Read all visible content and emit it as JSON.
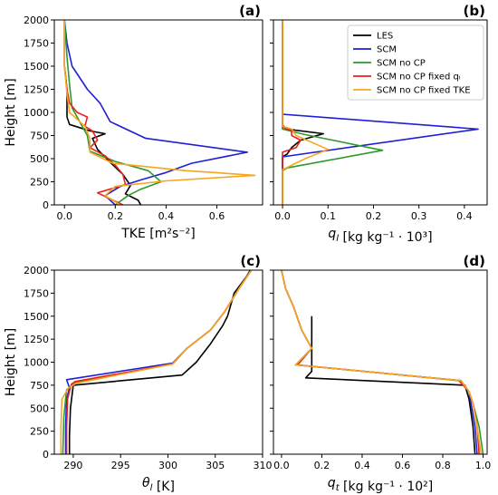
{
  "chart_data": [
    {
      "id": "a",
      "type": "line",
      "panel_label": "(a)",
      "xlabel": "TKE [m²s⁻²]",
      "ylabel": "Height [m]",
      "xlim": [
        -0.04,
        0.78
      ],
      "ylim": [
        0,
        2000
      ],
      "xticks": [
        0.0,
        0.2,
        0.4,
        0.6
      ],
      "xticklabels": [
        "0.0",
        "0.2",
        "0.4",
        "0.6"
      ],
      "yticks": [
        0,
        250,
        500,
        750,
        1000,
        1250,
        1500,
        1750,
        2000
      ],
      "yticklabels": [
        "0",
        "250",
        "500",
        "750",
        "1000",
        "1250",
        "1500",
        "1750",
        "2000"
      ],
      "legend": null,
      "series": [
        {
          "name": "LES",
          "color": "#000000",
          "points": [
            [
              0.0,
              2000
            ],
            [
              0.0,
              1500
            ],
            [
              0.01,
              1250
            ],
            [
              0.01,
              1100
            ],
            [
              0.01,
              950
            ],
            [
              0.02,
              870
            ],
            [
              0.1,
              800
            ],
            [
              0.16,
              770
            ],
            [
              0.11,
              720
            ],
            [
              0.13,
              600
            ],
            [
              0.18,
              460
            ],
            [
              0.23,
              330
            ],
            [
              0.26,
              210
            ],
            [
              0.24,
              120
            ],
            [
              0.29,
              50
            ],
            [
              0.3,
              0
            ]
          ]
        },
        {
          "name": "SCM",
          "color": "#1f1fd6",
          "points": [
            [
              0.0,
              2000
            ],
            [
              0.01,
              1750
            ],
            [
              0.03,
              1500
            ],
            [
              0.09,
              1250
            ],
            [
              0.14,
              1100
            ],
            [
              0.18,
              900
            ],
            [
              0.32,
              720
            ],
            [
              0.72,
              570
            ],
            [
              0.5,
              450
            ],
            [
              0.4,
              350
            ],
            [
              0.3,
              270
            ],
            [
              0.22,
              200
            ],
            [
              0.16,
              100
            ],
            [
              0.2,
              0
            ]
          ]
        },
        {
          "name": "SCM no CP",
          "color": "#2c9a2c",
          "points": [
            [
              0.0,
              2000
            ],
            [
              0.01,
              1600
            ],
            [
              0.02,
              1300
            ],
            [
              0.03,
              1050
            ],
            [
              0.06,
              900
            ],
            [
              0.09,
              750
            ],
            [
              0.1,
              580
            ],
            [
              0.2,
              470
            ],
            [
              0.33,
              370
            ],
            [
              0.38,
              250
            ],
            [
              0.3,
              170
            ],
            [
              0.25,
              100
            ],
            [
              0.2,
              0
            ]
          ]
        },
        {
          "name": "SCM no CP fixed q_l",
          "color": "#e8231a",
          "points": [
            [
              0.0,
              2000
            ],
            [
              0.0,
              1500
            ],
            [
              0.01,
              1250
            ],
            [
              0.02,
              1100
            ],
            [
              0.05,
              1000
            ],
            [
              0.09,
              950
            ],
            [
              0.08,
              850
            ],
            [
              0.11,
              800
            ],
            [
              0.13,
              700
            ],
            [
              0.1,
              620
            ],
            [
              0.16,
              530
            ],
            [
              0.2,
              430
            ],
            [
              0.23,
              330
            ],
            [
              0.24,
              220
            ],
            [
              0.13,
              130
            ],
            [
              0.23,
              0
            ]
          ]
        },
        {
          "name": "SCM no CP fixed TKE",
          "color": "#f5a623",
          "points": [
            [
              0.0,
              2000
            ],
            [
              0.0,
              1500
            ],
            [
              0.01,
              1200
            ],
            [
              0.02,
              1000
            ],
            [
              0.08,
              850
            ],
            [
              0.1,
              720
            ],
            [
              0.1,
              570
            ],
            [
              0.19,
              450
            ],
            [
              0.48,
              370
            ],
            [
              0.75,
              320
            ],
            [
              0.4,
              260
            ],
            [
              0.2,
              200
            ],
            [
              0.16,
              100
            ],
            [
              0.22,
              0
            ]
          ]
        }
      ]
    },
    {
      "id": "b",
      "type": "line",
      "panel_label": "(b)",
      "xlabel": "q_l [kg kg⁻¹ · 10³]",
      "xlim": [
        -0.02,
        0.45
      ],
      "ylim": [
        0,
        2000
      ],
      "xticks": [
        0.0,
        0.1,
        0.2,
        0.3,
        0.4
      ],
      "xticklabels": [
        "0.0",
        "0.1",
        "0.2",
        "0.3",
        "0.4"
      ],
      "legend": "top-right",
      "series": [
        {
          "name": "LES",
          "color": "#000000",
          "points": [
            [
              0.0,
              2000
            ],
            [
              0.0,
              860
            ],
            [
              0.01,
              820
            ],
            [
              0.09,
              770
            ],
            [
              0.04,
              700
            ],
            [
              0.02,
              620
            ],
            [
              0.01,
              550
            ],
            [
              0.0,
              520
            ],
            [
              0.0,
              0
            ]
          ]
        },
        {
          "name": "SCM",
          "color": "#1f1fd6",
          "points": [
            [
              0.0,
              2000
            ],
            [
              0.0,
              980
            ],
            [
              0.43,
              820
            ],
            [
              0.0,
              520
            ],
            [
              0.0,
              0
            ]
          ]
        },
        {
          "name": "SCM no CP",
          "color": "#2c9a2c",
          "points": [
            [
              0.0,
              2000
            ],
            [
              0.0,
              820
            ],
            [
              0.05,
              760
            ],
            [
              0.22,
              590
            ],
            [
              0.01,
              400
            ],
            [
              0.0,
              370
            ],
            [
              0.0,
              0
            ]
          ]
        },
        {
          "name": "SCM no CP fixed q_l",
          "color": "#e8231a",
          "points": [
            [
              0.0,
              2000
            ],
            [
              0.0,
              840
            ],
            [
              0.02,
              800
            ],
            [
              0.02,
              750
            ],
            [
              0.04,
              700
            ],
            [
              0.03,
              620
            ],
            [
              0.0,
              570
            ],
            [
              0.0,
              0
            ]
          ]
        },
        {
          "name": "SCM no CP fixed TKE",
          "color": "#f5a623",
          "points": [
            [
              0.0,
              2000
            ],
            [
              0.0,
              850
            ],
            [
              0.02,
              820
            ],
            [
              0.03,
              750
            ],
            [
              0.1,
              600
            ],
            [
              0.05,
              500
            ],
            [
              0.0,
              380
            ],
            [
              0.0,
              0
            ]
          ]
        }
      ]
    },
    {
      "id": "c",
      "type": "line",
      "panel_label": "(c)",
      "xlabel": "θ_l [K]",
      "ylabel": "Height [m]",
      "xlim": [
        288,
        310
      ],
      "ylim": [
        0,
        2000
      ],
      "xticks": [
        290,
        295,
        300,
        305,
        310
      ],
      "xticklabels": [
        "290",
        "295",
        "300",
        "305",
        "310"
      ],
      "yticks": [
        0,
        250,
        500,
        750,
        1000,
        1250,
        1500,
        1750,
        2000
      ],
      "yticklabels": [
        "0",
        "250",
        "500",
        "750",
        "1000",
        "1250",
        "1500",
        "1750",
        "2000"
      ],
      "legend": null,
      "series": [
        {
          "name": "LES",
          "color": "#000000",
          "points": [
            [
              289.6,
              0
            ],
            [
              289.6,
              200
            ],
            [
              289.7,
              500
            ],
            [
              290.0,
              750
            ],
            [
              301.5,
              860
            ],
            [
              303.0,
              1000
            ],
            [
              304.5,
              1200
            ],
            [
              305.8,
              1400
            ],
            [
              306.3,
              1500
            ],
            [
              307.0,
              1750
            ],
            [
              308.3,
              1930
            ],
            [
              308.7,
              2000
            ]
          ]
        },
        {
          "name": "SCM",
          "color": "#1f1fd6",
          "points": [
            [
              289.2,
              0
            ],
            [
              289.2,
              300
            ],
            [
              289.3,
              600
            ],
            [
              289.6,
              720
            ],
            [
              289.3,
              810
            ],
            [
              300.5,
              990
            ],
            [
              302.0,
              1150
            ],
            [
              304.5,
              1350
            ],
            [
              306.0,
              1550
            ],
            [
              307.5,
              1800
            ],
            [
              308.8,
              2000
            ]
          ]
        },
        {
          "name": "SCM no CP",
          "color": "#2c9a2c",
          "points": [
            [
              288.9,
              0
            ],
            [
              289.0,
              400
            ],
            [
              289.2,
              600
            ],
            [
              289.3,
              700
            ],
            [
              290.2,
              780
            ],
            [
              300.5,
              980
            ],
            [
              302.0,
              1150
            ],
            [
              304.5,
              1350
            ],
            [
              306.0,
              1550
            ],
            [
              307.5,
              1800
            ],
            [
              308.8,
              2000
            ]
          ]
        },
        {
          "name": "SCM no CP fixed q_l",
          "color": "#e8231a",
          "points": [
            [
              289.3,
              0
            ],
            [
              289.3,
              300
            ],
            [
              289.4,
              600
            ],
            [
              289.8,
              760
            ],
            [
              290.2,
              790
            ],
            [
              300.5,
              980
            ],
            [
              302.0,
              1150
            ],
            [
              304.5,
              1350
            ],
            [
              306.0,
              1550
            ],
            [
              307.5,
              1800
            ],
            [
              308.8,
              2000
            ]
          ]
        },
        {
          "name": "SCM no CP fixed TKE",
          "color": "#f5a623",
          "points": [
            [
              288.7,
              0
            ],
            [
              288.7,
              300
            ],
            [
              288.8,
              600
            ],
            [
              289.5,
              720
            ],
            [
              290.3,
              770
            ],
            [
              300.5,
              980
            ],
            [
              302.0,
              1150
            ],
            [
              304.5,
              1350
            ],
            [
              306.0,
              1550
            ],
            [
              307.5,
              1800
            ],
            [
              308.8,
              2000
            ]
          ]
        }
      ]
    },
    {
      "id": "d",
      "type": "line",
      "panel_label": "(d)",
      "xlabel": "q_t [kg kg⁻¹ · 10²]",
      "xlim": [
        -0.04,
        1.02
      ],
      "ylim": [
        0,
        2000
      ],
      "xticks": [
        0.0,
        0.2,
        0.4,
        0.6,
        0.8,
        1.0
      ],
      "xticklabels": [
        "0.0",
        "0.2",
        "0.4",
        "0.6",
        "0.8",
        "1.0"
      ],
      "legend": null,
      "series": [
        {
          "name": "LES",
          "color": "#000000",
          "points": [
            [
              0.96,
              0
            ],
            [
              0.95,
              300
            ],
            [
              0.93,
              600
            ],
            [
              0.91,
              750
            ],
            [
              0.12,
              830
            ],
            [
              0.15,
              900
            ],
            [
              0.15,
              1000
            ],
            [
              0.15,
              1500
            ]
          ]
        },
        {
          "name": "SCM",
          "color": "#1f1fd6",
          "points": [
            [
              0.97,
              0
            ],
            [
              0.96,
              300
            ],
            [
              0.94,
              550
            ],
            [
              0.93,
              680
            ],
            [
              0.89,
              800
            ],
            [
              0.07,
              970
            ],
            [
              0.15,
              1150
            ],
            [
              0.1,
              1350
            ],
            [
              0.06,
              1600
            ],
            [
              0.02,
              1800
            ],
            [
              0.0,
              2000
            ]
          ]
        },
        {
          "name": "SCM no CP",
          "color": "#2c9a2c",
          "points": [
            [
              1.0,
              0
            ],
            [
              0.98,
              300
            ],
            [
              0.95,
              550
            ],
            [
              0.93,
              680
            ],
            [
              0.89,
              800
            ],
            [
              0.07,
              970
            ],
            [
              0.15,
              1150
            ],
            [
              0.1,
              1350
            ],
            [
              0.06,
              1600
            ],
            [
              0.02,
              1800
            ],
            [
              0.0,
              2000
            ]
          ]
        },
        {
          "name": "SCM no CP fixed q_l",
          "color": "#e8231a",
          "points": [
            [
              0.98,
              0
            ],
            [
              0.97,
              300
            ],
            [
              0.95,
              550
            ],
            [
              0.93,
              680
            ],
            [
              0.88,
              800
            ],
            [
              0.08,
              970
            ],
            [
              0.15,
              1150
            ],
            [
              0.1,
              1350
            ],
            [
              0.06,
              1600
            ],
            [
              0.02,
              1800
            ],
            [
              0.0,
              2000
            ]
          ]
        },
        {
          "name": "SCM no CP fixed TKE",
          "color": "#f5a623",
          "points": [
            [
              0.99,
              0
            ],
            [
              0.97,
              300
            ],
            [
              0.95,
              550
            ],
            [
              0.93,
              680
            ],
            [
              0.89,
              800
            ],
            [
              0.07,
              970
            ],
            [
              0.15,
              1150
            ],
            [
              0.1,
              1350
            ],
            [
              0.06,
              1600
            ],
            [
              0.02,
              1800
            ],
            [
              0.0,
              2000
            ]
          ]
        }
      ]
    }
  ],
  "legend": {
    "entries": [
      {
        "label": "LES",
        "color": "#000000"
      },
      {
        "label": "SCM",
        "color": "#1f1fd6"
      },
      {
        "label": "SCM no CP",
        "color": "#2c9a2c"
      },
      {
        "label": "SCM no CP fixed qₗ",
        "color": "#e8231a"
      },
      {
        "label": "SCM no CP fixed TKE",
        "color": "#f5a623"
      }
    ]
  }
}
